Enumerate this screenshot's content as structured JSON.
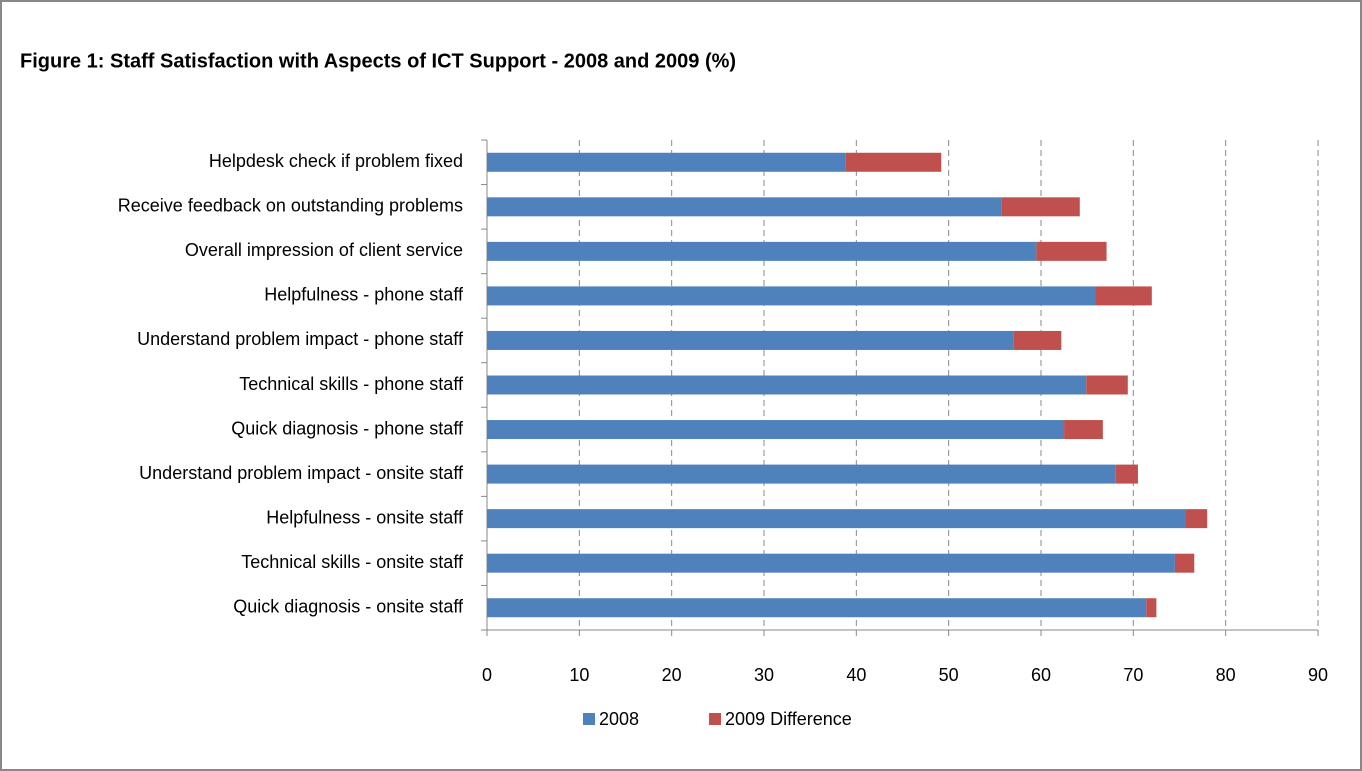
{
  "chart_data": {
    "type": "bar",
    "orientation": "horizontal",
    "stacked": true,
    "title": "Figure 1: Staff Satisfaction with Aspects of ICT Support - 2008 and 2009 (%)",
    "categories": [
      "Helpdesk check if problem fixed",
      "Receive feedback on outstanding problems",
      "Overall impression of client service",
      "Helpfulness - phone staff",
      "Understand problem impact - phone staff",
      "Technical skills - phone staff",
      "Quick diagnosis - phone staff",
      "Understand problem impact - onsite staff",
      "Helpfulness - onsite staff",
      "Technical skills - onsite staff",
      "Quick diagnosis - onsite staff"
    ],
    "series": [
      {
        "name": "2008",
        "color": "#4f81bd",
        "values": [
          38.8,
          55.7,
          59.5,
          65.9,
          57.0,
          64.9,
          62.5,
          68.1,
          75.7,
          74.5,
          71.4
        ]
      },
      {
        "name": "2009 Difference",
        "color": "#c0504d",
        "values": [
          10.4,
          8.5,
          7.6,
          6.1,
          5.2,
          4.5,
          4.2,
          2.4,
          2.3,
          2.1,
          1.1
        ]
      }
    ],
    "xlim": [
      0,
      90
    ],
    "xticks": [
      0,
      10,
      20,
      30,
      40,
      50,
      60,
      70,
      80,
      90
    ],
    "grid": true,
    "legend": "bottom"
  }
}
